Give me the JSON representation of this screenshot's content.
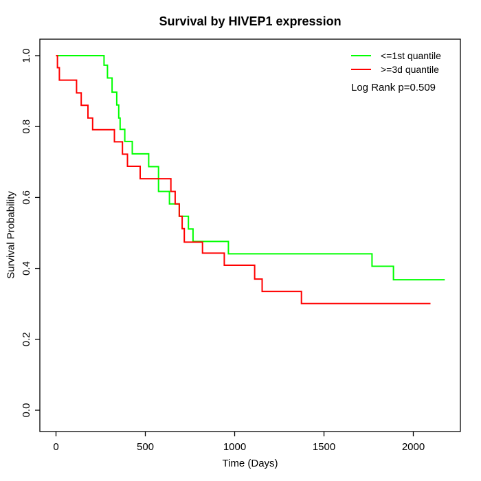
{
  "chart_data": {
    "type": "line",
    "subtype": "kaplan_meier_step",
    "title": "Survival by HIVEP1 expression",
    "xlabel": "Time (Days)",
    "ylabel": "Survival Probability",
    "x_tick_labels": [
      "0",
      "500",
      "1000",
      "1500",
      "2000"
    ],
    "x_tick_values": [
      0,
      500,
      1000,
      1500,
      2000
    ],
    "y_tick_labels": [
      "0.0",
      "0.2",
      "0.4",
      "0.6",
      "0.8",
      "1.0"
    ],
    "y_tick_values": [
      0,
      0.2,
      0.4,
      0.6,
      0.8,
      1.0
    ],
    "xlim": [
      0,
      2260
    ],
    "ylim": [
      0,
      1
    ],
    "grid": false,
    "legend_position": "top-right",
    "annotation": "Log Rank p=0.509",
    "axis_color": "#000000",
    "background_color": "#ffffff",
    "series": [
      {
        "name": "<=1st quantile",
        "color": "#00ff00",
        "end_time": 2176,
        "steps": [
          [
            0,
            1.0
          ],
          [
            269,
            0.973
          ],
          [
            288,
            0.937
          ],
          [
            314,
            0.897
          ],
          [
            340,
            0.861
          ],
          [
            351,
            0.824
          ],
          [
            359,
            0.792
          ],
          [
            385,
            0.758
          ],
          [
            427,
            0.723
          ],
          [
            519,
            0.687
          ],
          [
            574,
            0.617
          ],
          [
            635,
            0.582
          ],
          [
            690,
            0.547
          ],
          [
            741,
            0.511
          ],
          [
            767,
            0.476
          ],
          [
            965,
            0.441
          ],
          [
            1769,
            0.406
          ],
          [
            1889,
            0.368
          ]
        ]
      },
      {
        "name": ">=3d quantile",
        "color": "#ff0000",
        "end_time": 2096,
        "steps": [
          [
            0,
            1.0
          ],
          [
            8,
            0.966
          ],
          [
            19,
            0.931
          ],
          [
            115,
            0.895
          ],
          [
            141,
            0.86
          ],
          [
            179,
            0.824
          ],
          [
            205,
            0.791
          ],
          [
            327,
            0.757
          ],
          [
            372,
            0.722
          ],
          [
            400,
            0.688
          ],
          [
            471,
            0.653
          ],
          [
            643,
            0.617
          ],
          [
            667,
            0.582
          ],
          [
            690,
            0.547
          ],
          [
            706,
            0.512
          ],
          [
            718,
            0.474
          ],
          [
            820,
            0.443
          ],
          [
            942,
            0.409
          ],
          [
            1112,
            0.37
          ],
          [
            1154,
            0.335
          ],
          [
            1374,
            0.301
          ]
        ]
      }
    ]
  }
}
